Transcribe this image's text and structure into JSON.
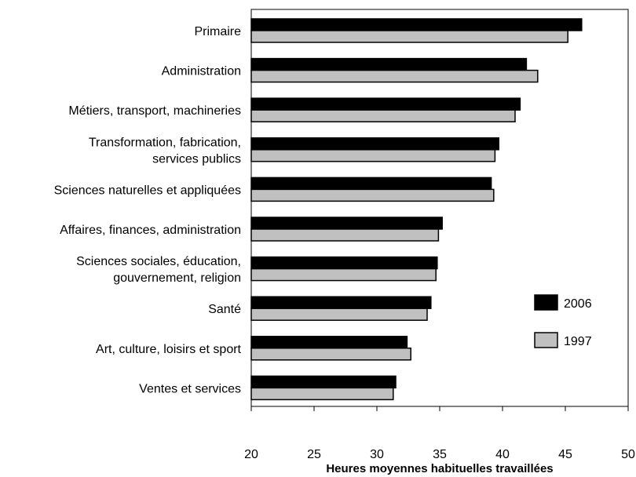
{
  "chart_data": {
    "type": "bar",
    "orientation": "horizontal",
    "categories": [
      [
        "Primaire"
      ],
      [
        "Administration"
      ],
      [
        "Métiers, transport, machineries"
      ],
      [
        "Transformation, fabrication,",
        "services publics"
      ],
      [
        "Sciences naturelles et appliquées"
      ],
      [
        "Affaires, finances, administration"
      ],
      [
        "Sciences sociales, éducation,",
        "gouvernement, religion"
      ],
      [
        "Santé"
      ],
      [
        "Art, culture, loisirs et sport"
      ],
      [
        "Ventes et services"
      ]
    ],
    "series": [
      {
        "name": "2006",
        "color": "#000000",
        "values": [
          46.3,
          41.9,
          41.4,
          39.7,
          39.1,
          35.2,
          34.8,
          34.3,
          32.4,
          31.5
        ]
      },
      {
        "name": "1997",
        "color": "#c0c0c0",
        "values": [
          45.2,
          42.8,
          41.0,
          39.4,
          39.3,
          34.9,
          34.7,
          34.0,
          32.7,
          31.3
        ]
      }
    ],
    "xlabel": "Heures moyennes habituelles travaillées",
    "xlim": [
      20,
      50
    ],
    "xticks": [
      20,
      25,
      30,
      35,
      40,
      45,
      50
    ],
    "grid": false,
    "legend_position": "right"
  }
}
